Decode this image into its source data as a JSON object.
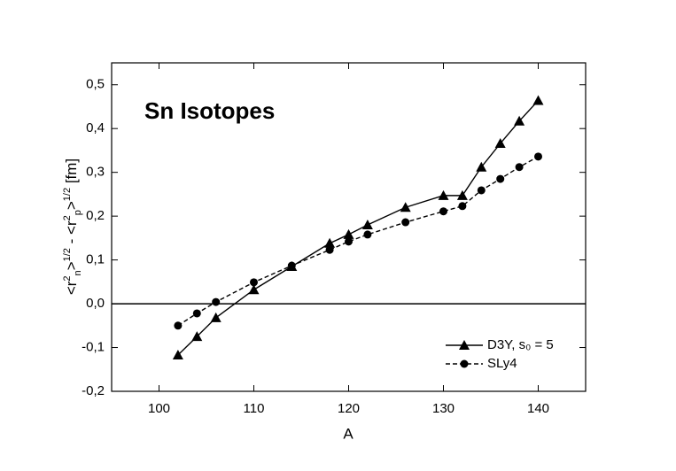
{
  "chart_data": {
    "type": "line",
    "annotation": "Sn Isotopes",
    "x_label": "A",
    "y_label_parts": [
      {
        "text": "<r",
        "shift": "base"
      },
      {
        "text": "2",
        "shift": "sup"
      },
      {
        "text": "n",
        "shift": "sub"
      },
      {
        "text": ">",
        "shift": "base"
      },
      {
        "text": "1/2",
        "shift": "sup"
      },
      {
        "text": " - <r",
        "shift": "base"
      },
      {
        "text": "2",
        "shift": "sup"
      },
      {
        "text": "p",
        "shift": "sub"
      },
      {
        "text": ">",
        "shift": "base"
      },
      {
        "text": "1/2",
        "shift": "sup"
      },
      {
        "text": " [fm]",
        "shift": "base"
      }
    ],
    "x": [
      102,
      104,
      106,
      110,
      114,
      118,
      120,
      122,
      126,
      130,
      132,
      134,
      136,
      138,
      140
    ],
    "series": [
      {
        "name": "D3Y, s₀ = 5",
        "color": "#000000",
        "marker": "triangle",
        "dash": "solid",
        "values": [
          -0.117,
          -0.075,
          -0.032,
          0.032,
          0.085,
          0.138,
          0.158,
          0.18,
          0.22,
          0.247,
          0.247,
          0.312,
          0.366,
          0.417,
          0.464
        ]
      },
      {
        "name": "SLy4",
        "color": "#000000",
        "marker": "circle",
        "dash": "dashed",
        "values": [
          -0.05,
          -0.022,
          0.004,
          0.049,
          0.087,
          0.123,
          0.142,
          0.158,
          0.186,
          0.211,
          0.223,
          0.259,
          0.285,
          0.312,
          0.336
        ]
      }
    ],
    "xlim": [
      95,
      145
    ],
    "xticks": [
      100,
      110,
      120,
      130,
      140
    ],
    "ylim": [
      -0.2,
      0.55
    ],
    "yticks": [
      {
        "value": -0.2,
        "label": "-0,2"
      },
      {
        "value": -0.1,
        "label": "-0,1"
      },
      {
        "value": 0,
        "label": "0,0"
      },
      {
        "value": 0.1,
        "label": "0,1"
      },
      {
        "value": 0.2,
        "label": "0,2"
      },
      {
        "value": 0.3,
        "label": "0,3"
      },
      {
        "value": 0.4,
        "label": "0,4"
      },
      {
        "value": 0.5,
        "label": "0,5"
      }
    ],
    "zero_line": true,
    "grid": false,
    "legend": "lower right"
  }
}
